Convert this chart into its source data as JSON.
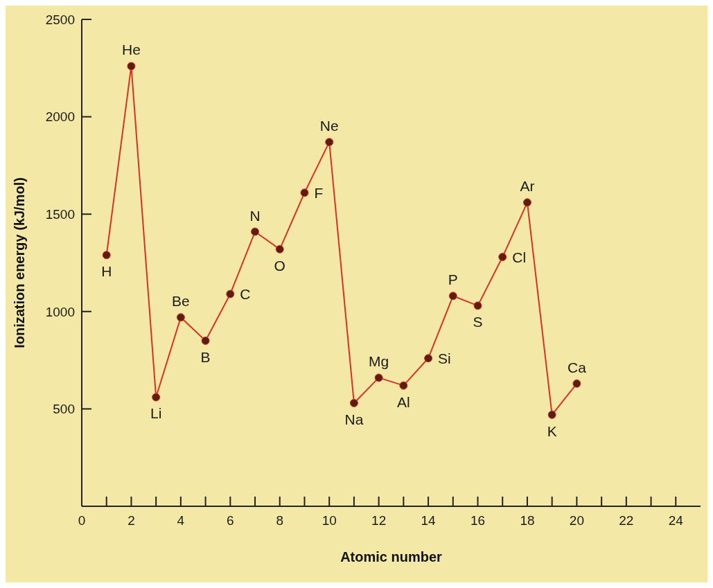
{
  "chart_data": {
    "type": "line",
    "xlabel": "Atomic number",
    "ylabel": "Ionization energy (kJ/mol)",
    "x": [
      1,
      2,
      3,
      4,
      5,
      6,
      7,
      8,
      9,
      10,
      11,
      12,
      13,
      14,
      15,
      16,
      17,
      18,
      19,
      20
    ],
    "values": [
      1290,
      2260,
      560,
      970,
      850,
      1090,
      1410,
      1320,
      1610,
      1870,
      530,
      660,
      620,
      760,
      1080,
      1030,
      1280,
      1560,
      470,
      630
    ],
    "color": "#d9321f",
    "marker": "circle",
    "line_style": "solid",
    "xlim": [
      0,
      25
    ],
    "xticks": [
      0,
      {
        "value": 1,
        "label": null
      },
      2,
      {
        "value": 3,
        "label": null
      },
      4,
      {
        "value": 5,
        "label": null
      },
      6,
      {
        "value": 7,
        "label": null
      },
      8,
      {
        "value": 9,
        "label": null
      },
      10,
      {
        "value": 11,
        "label": null
      },
      12,
      {
        "value": 13,
        "label": null
      },
      14,
      {
        "value": 15,
        "label": null
      },
      16,
      {
        "value": 17,
        "label": null
      },
      18,
      {
        "value": 19,
        "label": null
      },
      20,
      {
        "value": 21,
        "label": null
      },
      22,
      {
        "value": 23,
        "label": null
      },
      24
    ],
    "ylim": [
      0,
      2500
    ],
    "yticks": [
      500,
      1000,
      1500,
      2000,
      2500
    ],
    "annotations": [
      {
        "text": "H",
        "x": 1,
        "y": 1290
      },
      {
        "text": "He",
        "x": 2,
        "y": 2260
      },
      {
        "text": "Li",
        "x": 3,
        "y": 560
      },
      {
        "text": "Be",
        "x": 4,
        "y": 970
      },
      {
        "text": "B",
        "x": 5,
        "y": 850
      },
      {
        "text": "C",
        "x": 6,
        "y": 1090
      },
      {
        "text": "N",
        "x": 7,
        "y": 1410
      },
      {
        "text": "O",
        "x": 8,
        "y": 1320
      },
      {
        "text": "F",
        "x": 9,
        "y": 1610
      },
      {
        "text": "Ne",
        "x": 10,
        "y": 1870
      },
      {
        "text": "Na",
        "x": 11,
        "y": 530
      },
      {
        "text": "Mg",
        "x": 12,
        "y": 660
      },
      {
        "text": "Al",
        "x": 13,
        "y": 620
      },
      {
        "text": "Si",
        "x": 14,
        "y": 760
      },
      {
        "text": "P",
        "x": 15,
        "y": 1080
      },
      {
        "text": "S",
        "x": 16,
        "y": 1030
      },
      {
        "text": "Cl",
        "x": 17,
        "y": 1280
      },
      {
        "text": "Ar",
        "x": 18,
        "y": 1560
      },
      {
        "text": "K",
        "x": 19,
        "y": 470
      },
      {
        "text": "Ca",
        "x": 20,
        "y": 630
      }
    ]
  }
}
